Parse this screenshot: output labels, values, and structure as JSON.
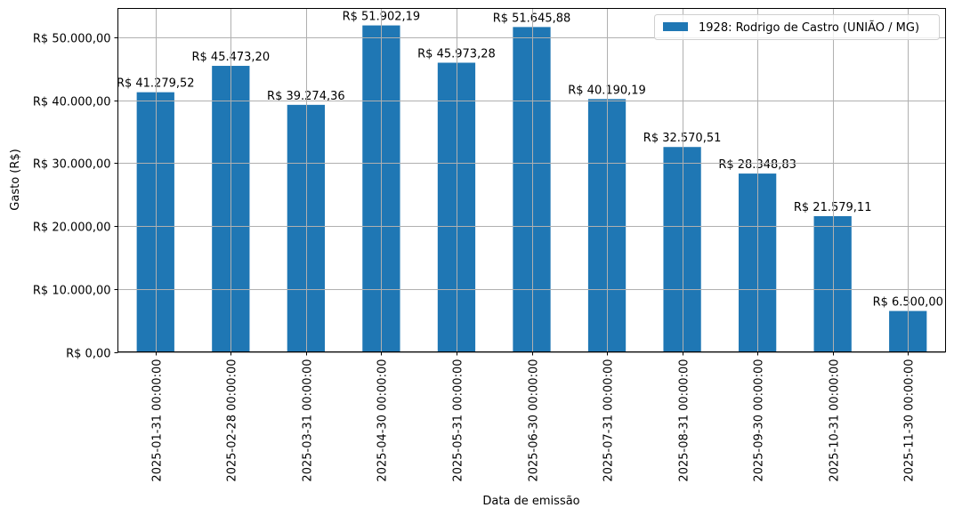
{
  "chart_data": {
    "type": "bar",
    "title": "",
    "xlabel": "Data de emissão",
    "ylabel": "Gasto (R$)",
    "ylim": [
      0,
      54600
    ],
    "grid": true,
    "legend_position": "upper right",
    "bar_color": "#1f77b4",
    "categories": [
      "2025-01-31 00:00:00",
      "2025-02-28 00:00:00",
      "2025-03-31 00:00:00",
      "2025-04-30 00:00:00",
      "2025-05-31 00:00:00",
      "2025-06-30 00:00:00",
      "2025-07-31 00:00:00",
      "2025-08-31 00:00:00",
      "2025-09-30 00:00:00",
      "2025-10-31 00:00:00",
      "2025-11-30 00:00:00"
    ],
    "series": [
      {
        "name": "1928: Rodrigo de Castro (UNIÃO / MG)",
        "values": [
          41279.52,
          45473.2,
          39274.36,
          51902.19,
          45973.28,
          51645.88,
          40190.19,
          32570.51,
          28348.83,
          21579.11,
          6500.0
        ],
        "labels": [
          "R$ 41.279,52",
          "R$ 45.473,20",
          "R$ 39.274,36",
          "R$ 51.902,19",
          "R$ 45.973,28",
          "R$ 51.645,88",
          "R$ 40.190,19",
          "R$ 32.570,51",
          "R$ 28.348,83",
          "R$ 21.579,11",
          "R$ 6.500,00"
        ]
      }
    ],
    "yticks": [
      0,
      10000,
      20000,
      30000,
      40000,
      50000
    ],
    "ytick_labels": [
      "R$ 0,00",
      "R$ 10.000,00",
      "R$ 20.000,00",
      "R$ 30.000,00",
      "R$ 40.000,00",
      "R$ 50.000,00"
    ],
    "legend": [
      "1928: Rodrigo de Castro (UNIÃO / MG)"
    ]
  }
}
